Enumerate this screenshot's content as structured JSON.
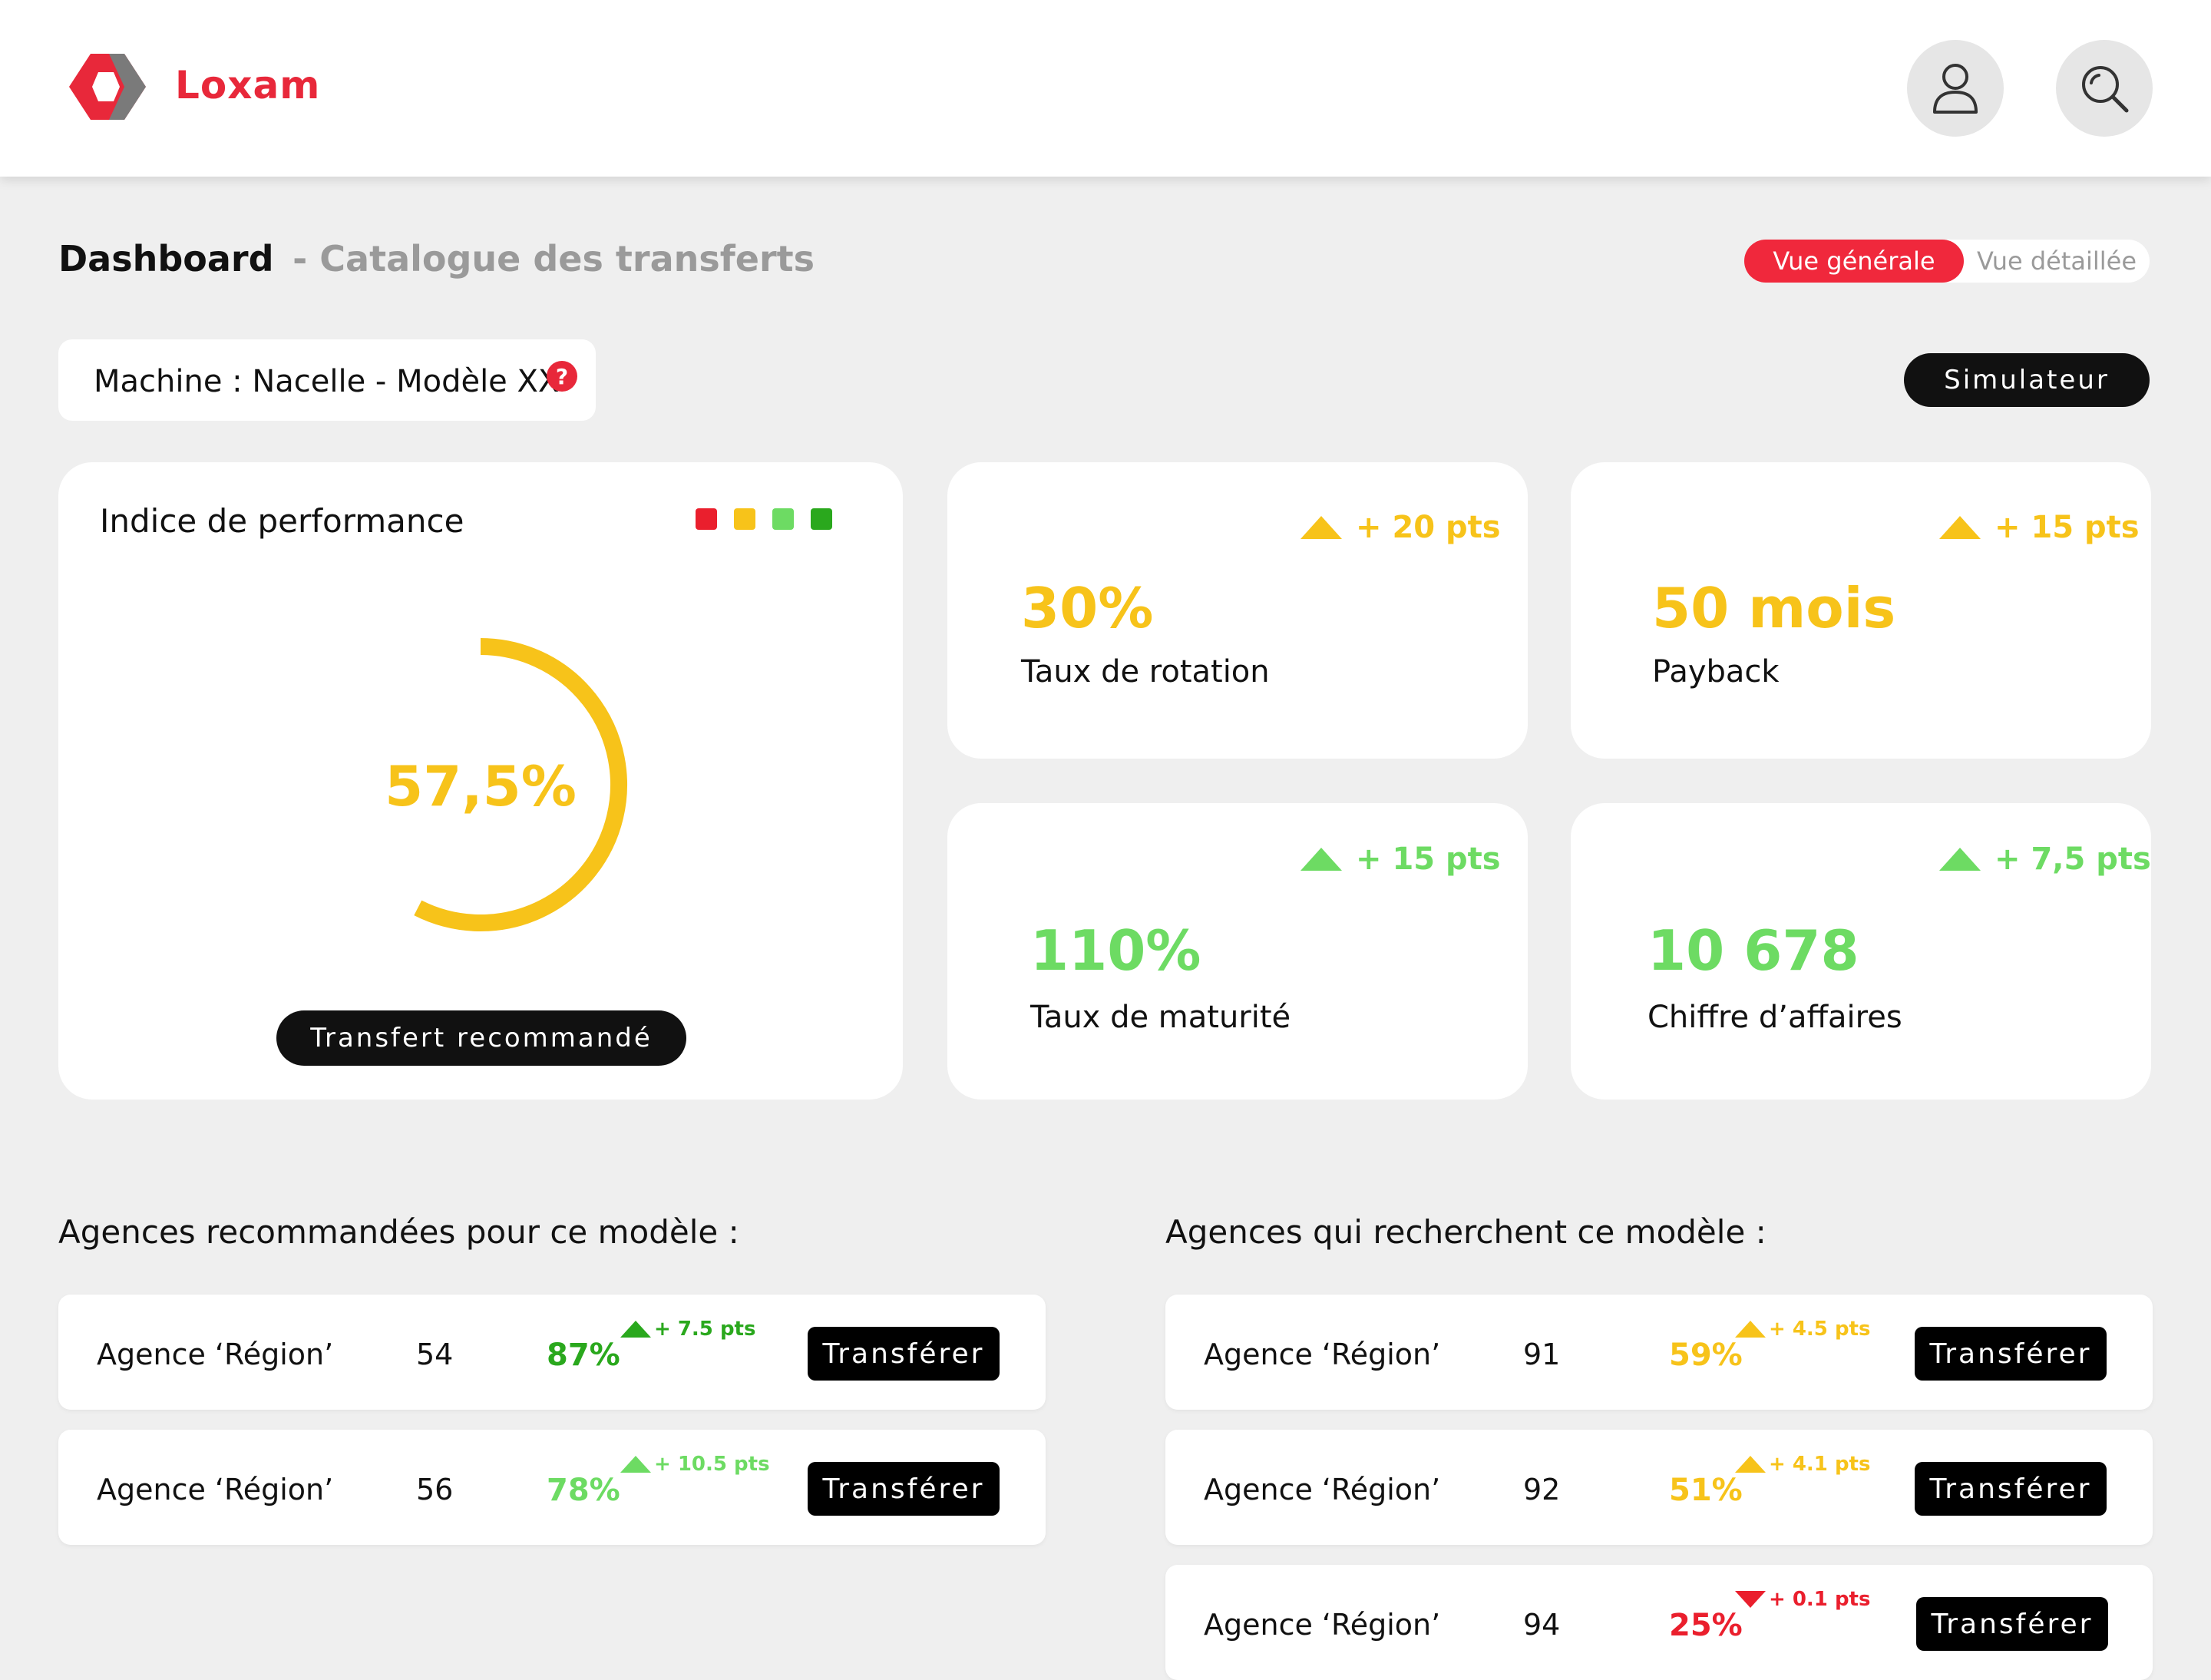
{
  "header": {
    "brand": "Loxam",
    "logo_icon": "loxam-hexagon-logo",
    "user_icon": "user-icon",
    "search_icon": "search-icon"
  },
  "page": {
    "title": "Dashboard",
    "subtitle": "- Catalogue des transferts",
    "view_toggle": {
      "active": "Vue générale",
      "inactive": "Vue détaillée"
    }
  },
  "machine": {
    "label": "Machine : Nacelle - Modèle XX",
    "help": "?"
  },
  "simulator_label": "Simulateur",
  "performance": {
    "title": "Indice de performance",
    "legend_colors": [
      "#ea1f2d",
      "#f7c31a",
      "#6ddb63",
      "#2aa81d"
    ],
    "value_text": "57,5%",
    "value": 57.5,
    "color": "#f7c31a",
    "button": "Transfert recommandé"
  },
  "kpis": [
    {
      "delta": "+ 20 pts",
      "value": "30%",
      "label": "Taux de rotation",
      "color": "#f7c31a"
    },
    {
      "delta": "+ 15 pts",
      "value": "50 mois",
      "label": "Payback",
      "color": "#f7c31a"
    },
    {
      "delta": "+ 15 pts",
      "value": "110%",
      "label": "Taux de maturité",
      "color": "#6ddb63"
    },
    {
      "delta": "+ 7,5 pts",
      "value": "10 678",
      "label": "Chiffre d’affaires",
      "color": "#6ddb63"
    }
  ],
  "recommended": {
    "title": "Agences recommandées pour ce modèle :",
    "rows": [
      {
        "name": "Agence ‘Région’",
        "num": "54",
        "pct": "87%",
        "delta": "+ 7.5 pts",
        "trend": "up",
        "color": "#2aa81d",
        "button": "Transférer"
      },
      {
        "name": "Agence ‘Région’",
        "num": "56",
        "pct": "78%",
        "delta": "+ 10.5 pts",
        "trend": "up",
        "color": "#6ddb63",
        "button": "Transférer"
      }
    ]
  },
  "searching": {
    "title": "Agences qui recherchent ce modèle :",
    "rows": [
      {
        "name": "Agence ‘Région’",
        "num": "91",
        "pct": "59%",
        "delta": "+ 4.5 pts",
        "trend": "up",
        "color": "#f7c31a",
        "button": "Transférer"
      },
      {
        "name": "Agence ‘Région’",
        "num": "92",
        "pct": "51%",
        "delta": "+ 4.1 pts",
        "trend": "up",
        "color": "#f7c31a",
        "button": "Transférer"
      },
      {
        "name": "Agence ‘Région’",
        "num": "94",
        "pct": "25%",
        "delta": "+ 0.1 pts",
        "trend": "down",
        "color": "#ea1f2d",
        "button": "Transférer"
      }
    ]
  }
}
